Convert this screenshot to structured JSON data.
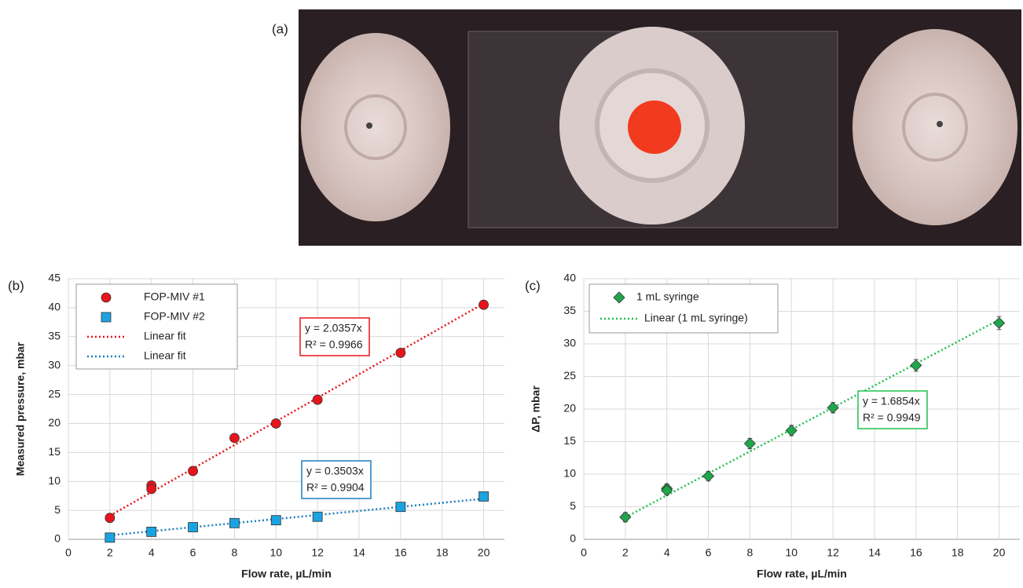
{
  "photo_label": "(a)",
  "chart_data": [
    {
      "type": "scatter",
      "panel_label": "(b)",
      "x_label": "Flow rate, µL/min",
      "y_label": "Measured pressure, mbar",
      "xlim": [
        0,
        21
      ],
      "xticks": [
        0,
        2,
        4,
        6,
        8,
        10,
        12,
        14,
        16,
        18,
        20
      ],
      "ylim": [
        0,
        45
      ],
      "yticks": [
        0,
        5,
        10,
        15,
        20,
        25,
        30,
        35,
        40,
        45
      ],
      "grid": true,
      "series": [
        {
          "name": "FOP-MIV #1",
          "color": "#e8141b",
          "marker": "circle",
          "x": [
            2,
            4,
            4,
            6,
            8,
            10,
            12,
            16,
            20
          ],
          "values": [
            3.7,
            9.3,
            8.7,
            11.8,
            17.5,
            20,
            24.1,
            32.2,
            40.5
          ]
        },
        {
          "name": "FOP-MIV #2",
          "color": "#1aa3e0",
          "marker": "square",
          "x": [
            2,
            4,
            6,
            8,
            10,
            12,
            16,
            20
          ],
          "values": [
            0.3,
            1.3,
            2.1,
            2.8,
            3.3,
            3.9,
            5.6,
            7.4
          ]
        }
      ],
      "fits": [
        {
          "name": "Linear fit",
          "color": "#e8141b",
          "slope": 2.0357,
          "equation": "y = 2.0357x",
          "r2": "R² = 0.9966"
        },
        {
          "name": "Linear fit",
          "color": "#1a7fc0",
          "slope": 0.3503,
          "equation": "y = 0.3503x",
          "r2": "R² = 0.9904"
        }
      ]
    },
    {
      "type": "scatter",
      "panel_label": "(c)",
      "x_label": "Flow rate, µL/min",
      "y_label": "ΔP, mbar",
      "xlim": [
        0,
        21
      ],
      "xticks": [
        0,
        2,
        4,
        6,
        8,
        10,
        12,
        14,
        16,
        18,
        20
      ],
      "ylim": [
        0,
        40
      ],
      "yticks": [
        0,
        5,
        10,
        15,
        20,
        25,
        30,
        35,
        40
      ],
      "grid": true,
      "series": [
        {
          "name": "1 mL syringe",
          "color": "#1fa64a",
          "marker": "diamond",
          "x": [
            2,
            4,
            4,
            6,
            8,
            10,
            12,
            16,
            20
          ],
          "values": [
            3.4,
            7.8,
            7.5,
            9.7,
            14.7,
            16.7,
            20.2,
            26.7,
            33.2
          ],
          "errors": [
            0.7,
            0.7,
            0.7,
            0.7,
            0.8,
            0.8,
            0.8,
            0.9,
            1.0
          ]
        }
      ],
      "fits": [
        {
          "name": "Linear (1 mL syringe)",
          "color": "#1fc050",
          "slope": 1.6854,
          "equation": "y = 1.6854x",
          "r2": "R² = 0.9949"
        }
      ]
    }
  ]
}
